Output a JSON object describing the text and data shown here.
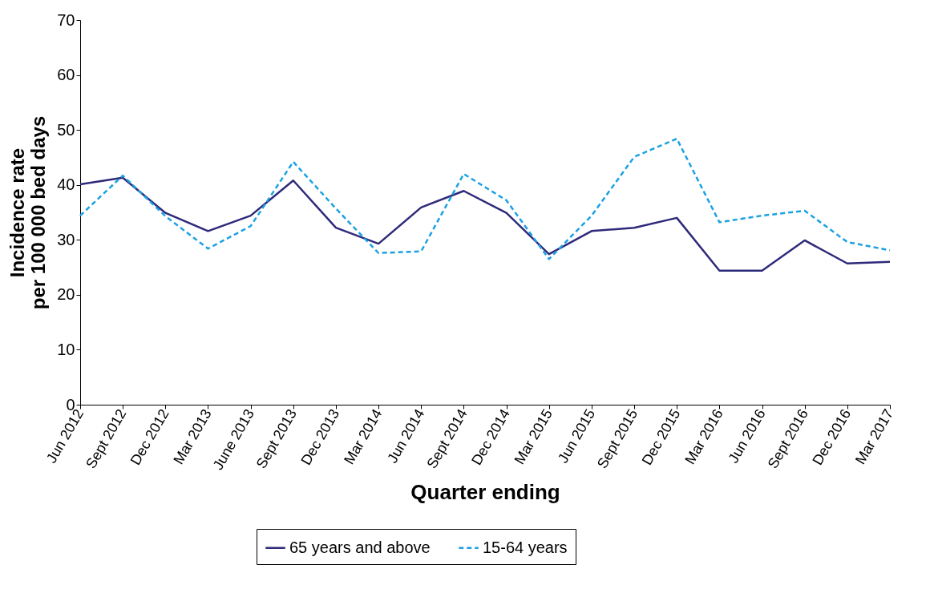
{
  "chart_data": {
    "type": "line",
    "xlabel": "Quarter ending",
    "ylabel": "Incidence rate\nper 100 000 bed days",
    "categories": [
      "Jun 2012",
      "Sept 2012",
      "Dec 2012",
      "Mar 2013",
      "June 2013",
      "Sept 2013",
      "Dec 2013",
      "Mar 2014",
      "Jun 2014",
      "Sept 2014",
      "Dec 2014",
      "Mar 2015",
      "Jun 2015",
      "Sept 2015",
      "Dec 2015",
      "Mar 2016",
      "Jun 2016",
      "Sept 2016",
      "Dec 2016",
      "Mar 2017"
    ],
    "series": [
      {
        "name": "65 years and above",
        "color": "#2e2a7a",
        "line_style": "solid",
        "values": [
          40.1,
          41.3,
          34.9,
          31.6,
          34.4,
          40.8,
          32.2,
          29.3,
          35.9,
          38.9,
          34.9,
          27.4,
          31.6,
          32.2,
          34.0,
          24.4,
          24.4,
          29.9,
          25.7,
          26.0
        ]
      },
      {
        "name": "15-64 years",
        "color": "#1ba1e2",
        "line_style": "dashed",
        "values": [
          34.4,
          41.7,
          34.3,
          28.4,
          32.5,
          44.2,
          35.7,
          27.6,
          27.9,
          42.0,
          37.2,
          26.5,
          34.4,
          45.1,
          48.4,
          33.2,
          34.4,
          35.3,
          29.6,
          28.1
        ]
      }
    ],
    "ylim": [
      0,
      70
    ],
    "yticks": [
      0,
      10,
      20,
      30,
      40,
      50,
      60,
      70
    ],
    "grid": false,
    "legend": "bottom",
    "marker": "none"
  }
}
